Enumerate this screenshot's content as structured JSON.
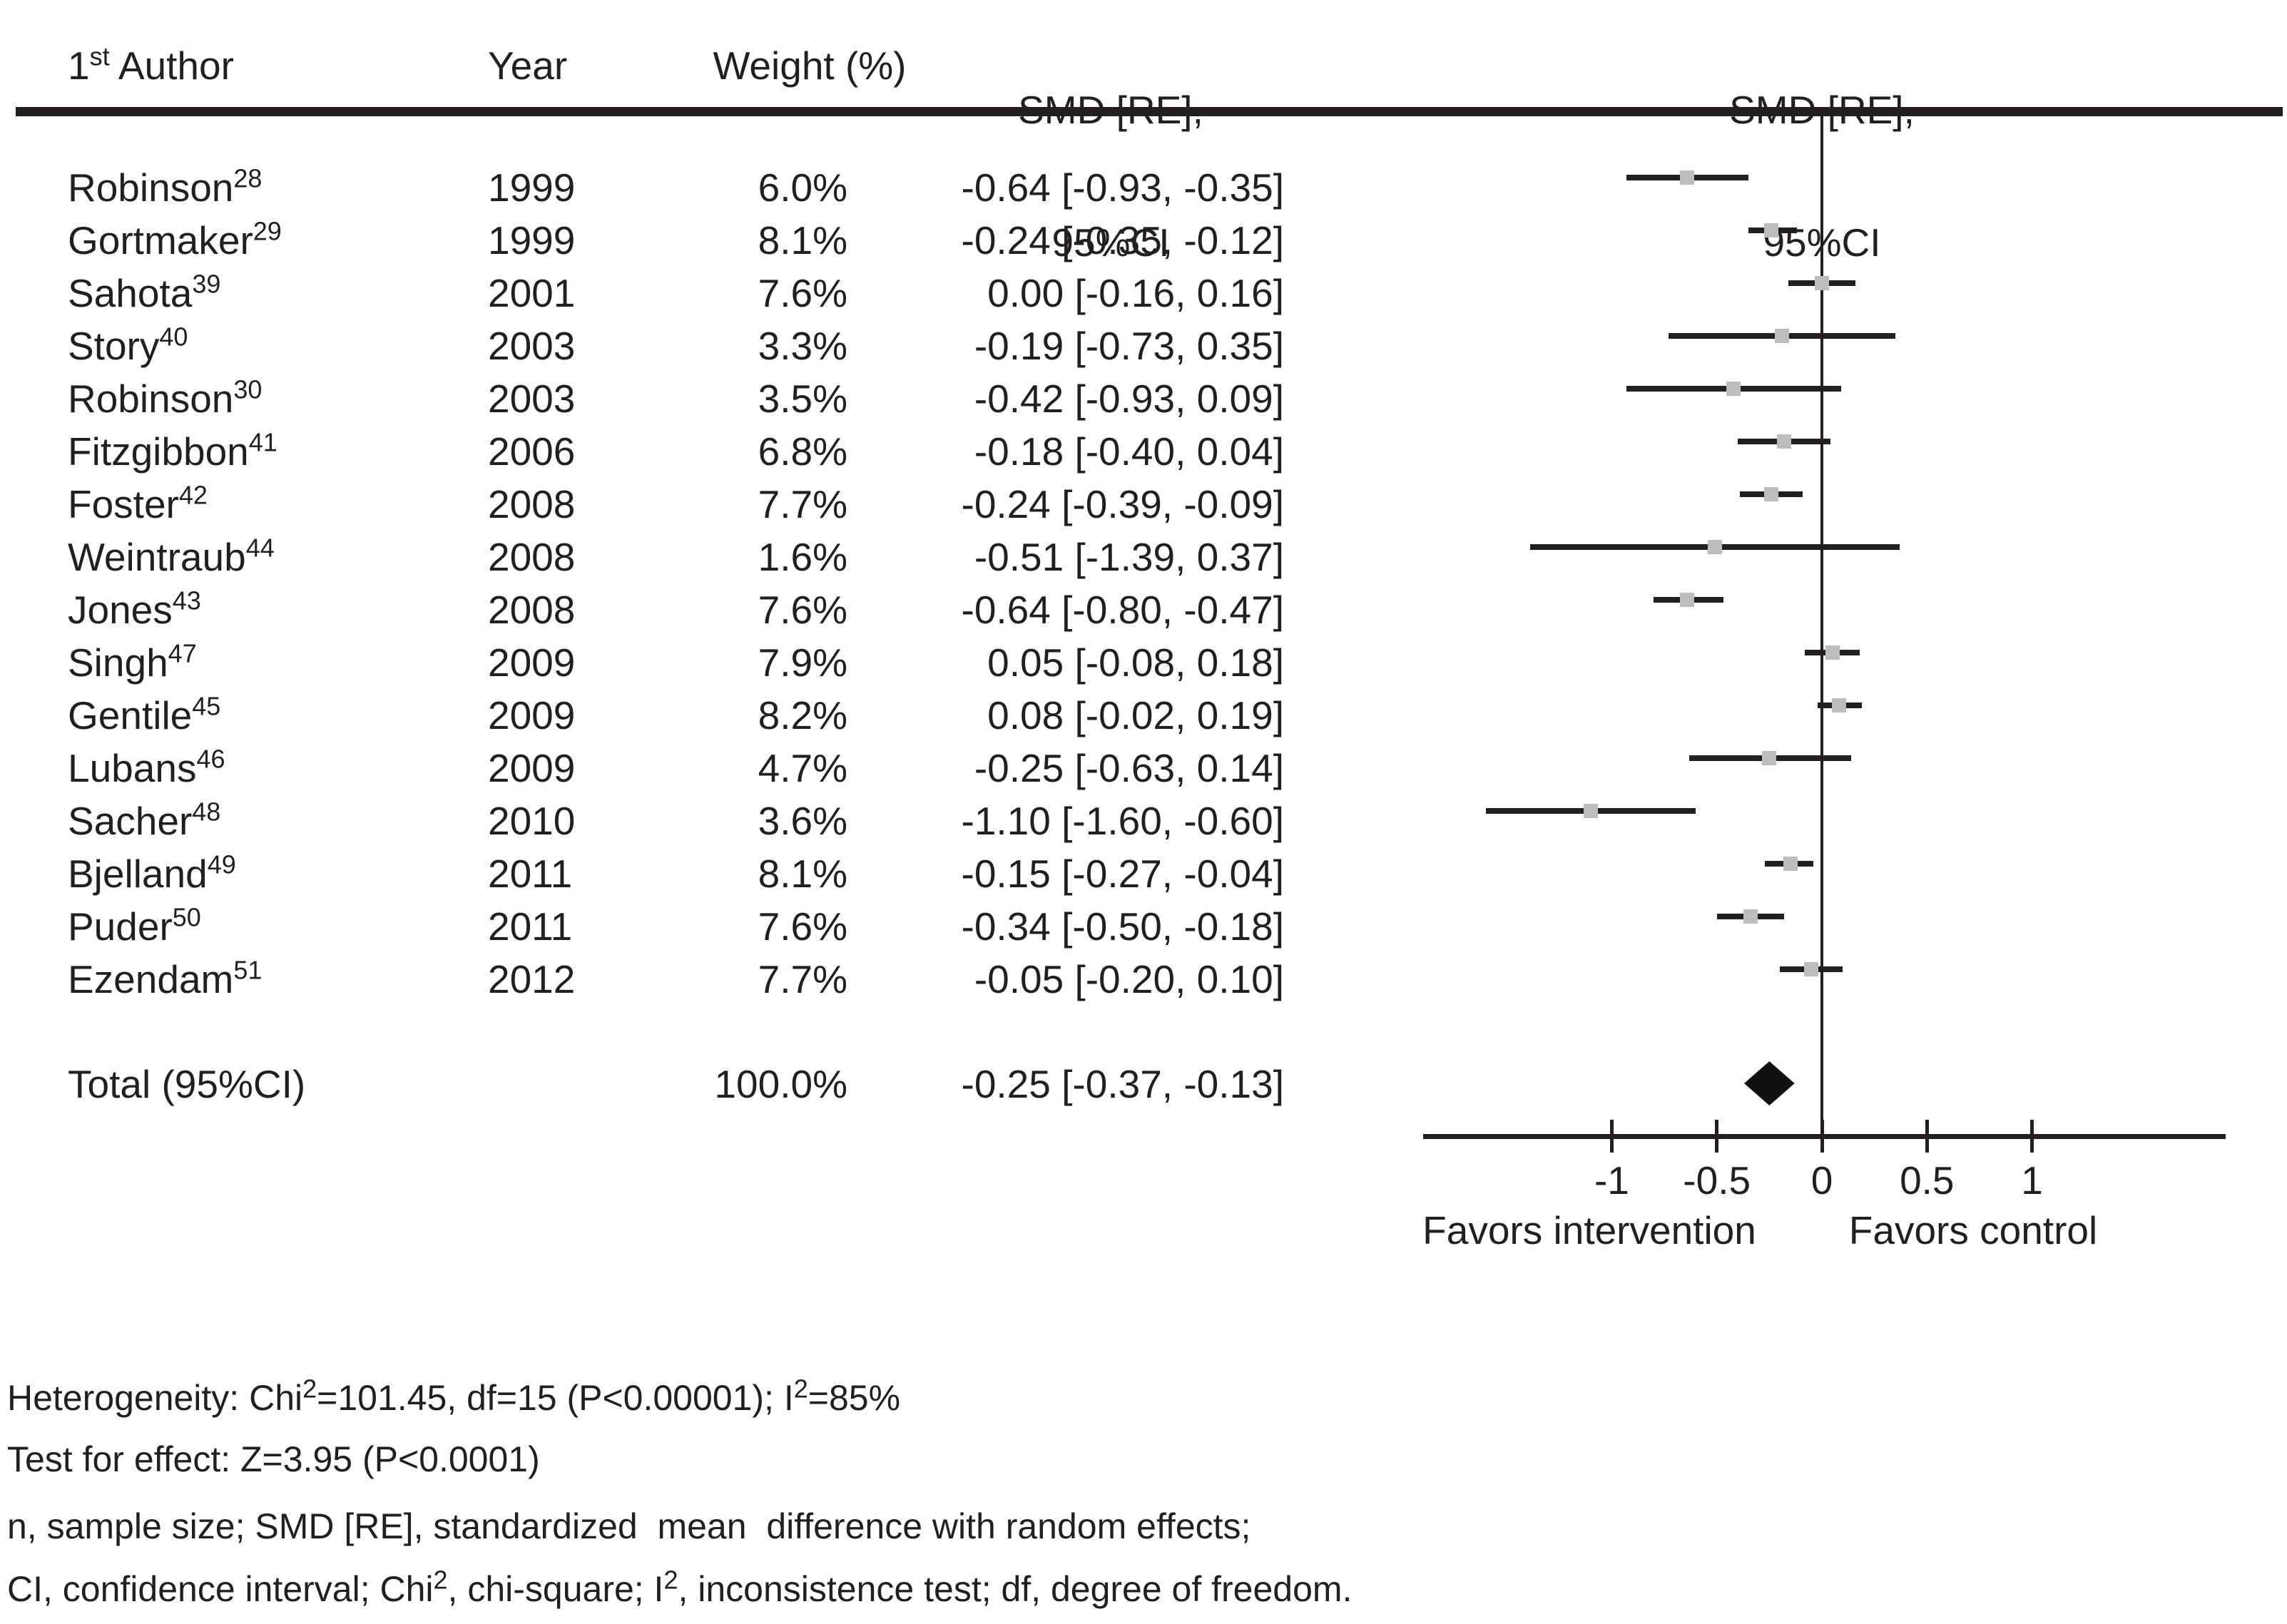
{
  "figure": {
    "header": {
      "author_segments": [
        {
          "t": "1"
        },
        {
          "sup": "st"
        },
        {
          "t": " Author"
        }
      ],
      "year": "Year",
      "weight": "Weight (%)",
      "smd_line1": "SMD [RE],",
      "smd_line2": "95%CI"
    },
    "footnotes": [
      [
        {
          "t": "Heterogeneity: Chi"
        },
        {
          "sup": "2"
        },
        {
          "t": "=101.45, df=15 (P<0.00001); I"
        },
        {
          "sup": "2"
        },
        {
          "t": "=85%"
        }
      ],
      [
        {
          "t": "Test for effect: Z=3.95 (P<0.0001)"
        }
      ],
      [
        {
          "t": "n, sample size; SMD [RE], standardized  mean  difference with random effects;"
        }
      ],
      [
        {
          "t": "CI, confidence interval; Chi"
        },
        {
          "sup": "2"
        },
        {
          "t": ", chi-square; I"
        },
        {
          "sup": "2"
        },
        {
          "t": ", inconsistence test; df, degree of freedom."
        }
      ]
    ]
  },
  "chart_data": {
    "type": "scatter",
    "variant": "forest-plot",
    "x_axis": {
      "ticks": [
        -1,
        -0.5,
        0,
        0.5,
        1
      ],
      "tick_labels": [
        "-1",
        "-0.5",
        "0",
        "0.5",
        "1"
      ],
      "range": [
        -1.9,
        1.92
      ],
      "zero_line": 0,
      "left_region_label": "Favors intervention",
      "right_region_label": "Favors control"
    },
    "studies": [
      {
        "author": "Robinson",
        "ref": "28",
        "year": "1999",
        "weight": "6.0%",
        "est": -0.64,
        "lo": -0.93,
        "hi": -0.35,
        "smd_text": "-0.64 [-0.93, -0.35]"
      },
      {
        "author": "Gortmaker",
        "ref": "29",
        "year": "1999",
        "weight": "8.1%",
        "est": -0.24,
        "lo": -0.35,
        "hi": -0.12,
        "smd_text": "-0.24 [-0.35, -0.12]"
      },
      {
        "author": "Sahota",
        "ref": "39",
        "year": "2001",
        "weight": "7.6%",
        "est": 0.0,
        "lo": -0.16,
        "hi": 0.16,
        "smd_text": "0.00 [-0.16, 0.16]"
      },
      {
        "author": "Story",
        "ref": "40",
        "year": "2003",
        "weight": "3.3%",
        "est": -0.19,
        "lo": -0.73,
        "hi": 0.35,
        "smd_text": "-0.19 [-0.73, 0.35]"
      },
      {
        "author": "Robinson",
        "ref": "30",
        "year": "2003",
        "weight": "3.5%",
        "est": -0.42,
        "lo": -0.93,
        "hi": 0.09,
        "smd_text": "-0.42 [-0.93, 0.09]"
      },
      {
        "author": "Fitzgibbon",
        "ref": "41",
        "year": "2006",
        "weight": "6.8%",
        "est": -0.18,
        "lo": -0.4,
        "hi": 0.04,
        "smd_text": "-0.18 [-0.40, 0.04]"
      },
      {
        "author": "Foster",
        "ref": "42",
        "year": "2008",
        "weight": "7.7%",
        "est": -0.24,
        "lo": -0.39,
        "hi": -0.09,
        "smd_text": "-0.24 [-0.39, -0.09]"
      },
      {
        "author": "Weintraub",
        "ref": "44",
        "year": "2008",
        "weight": "1.6%",
        "est": -0.51,
        "lo": -1.39,
        "hi": 0.37,
        "smd_text": "-0.51 [-1.39, 0.37]"
      },
      {
        "author": "Jones",
        "ref": "43",
        "year": "2008",
        "weight": "7.6%",
        "est": -0.64,
        "lo": -0.8,
        "hi": -0.47,
        "smd_text": "-0.64 [-0.80, -0.47]"
      },
      {
        "author": "Singh",
        "ref": "47",
        "year": "2009",
        "weight": "7.9%",
        "est": 0.05,
        "lo": -0.08,
        "hi": 0.18,
        "smd_text": "0.05 [-0.08, 0.18]"
      },
      {
        "author": "Gentile",
        "ref": "45",
        "year": "2009",
        "weight": "8.2%",
        "est": 0.08,
        "lo": -0.02,
        "hi": 0.19,
        "smd_text": "0.08 [-0.02, 0.19]"
      },
      {
        "author": "Lubans",
        "ref": "46",
        "year": "2009",
        "weight": "4.7%",
        "est": -0.25,
        "lo": -0.63,
        "hi": 0.14,
        "smd_text": "-0.25 [-0.63, 0.14]"
      },
      {
        "author": "Sacher",
        "ref": "48",
        "year": "2010",
        "weight": "3.6%",
        "est": -1.1,
        "lo": -1.6,
        "hi": -0.6,
        "smd_text": "-1.10 [-1.60, -0.60]"
      },
      {
        "author": "Bjelland",
        "ref": "49",
        "year": "2011",
        "weight": "8.1%",
        "est": -0.15,
        "lo": -0.27,
        "hi": -0.04,
        "smd_text": "-0.15 [-0.27, -0.04]"
      },
      {
        "author": "Puder",
        "ref": "50",
        "year": "2011",
        "weight": "7.6%",
        "est": -0.34,
        "lo": -0.5,
        "hi": -0.18,
        "smd_text": "-0.34 [-0.50, -0.18]"
      },
      {
        "author": "Ezendam",
        "ref": "51",
        "year": "2012",
        "weight": "7.7%",
        "est": -0.05,
        "lo": -0.2,
        "hi": 0.1,
        "smd_text": "-0.05 [-0.20, 0.10]"
      }
    ],
    "total": {
      "label": "Total (95%CI)",
      "weight": "100.0%",
      "est": -0.25,
      "lo": -0.37,
      "hi": -0.13,
      "smd_text": "-0.25 [-0.37, -0.13]"
    },
    "marker_color": "#bdbdbd",
    "line_color": "#231f20",
    "diamond_color": "#111111"
  }
}
